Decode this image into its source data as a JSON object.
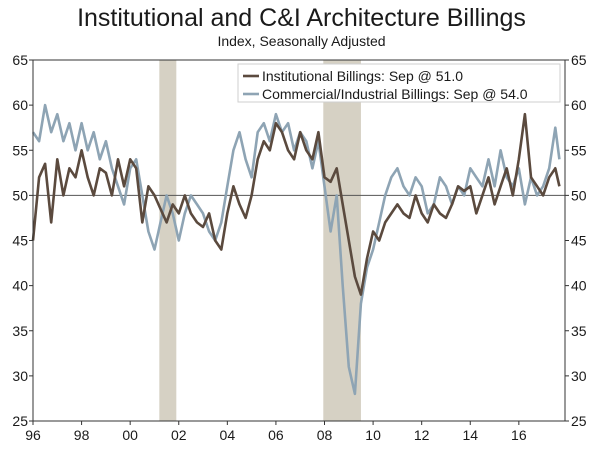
{
  "chart_data": {
    "type": "line",
    "title": "Institutional and C&I Architecture Billings",
    "subtitle": "Index, Seasonally Adjusted",
    "ylim": [
      25,
      65
    ],
    "y_ticks": [
      25,
      30,
      35,
      40,
      45,
      50,
      55,
      60,
      65
    ],
    "x_range": [
      1996.0,
      2017.9
    ],
    "x_tick_positions": [
      1996,
      1998,
      2000,
      2002,
      2004,
      2006,
      2008,
      2010,
      2012,
      2014,
      2016
    ],
    "x_tick_labels": [
      "96",
      "98",
      "00",
      "02",
      "04",
      "06",
      "08",
      "10",
      "12",
      "14",
      "16"
    ],
    "reference_line": 50,
    "recessions": [
      [
        2001.2,
        2001.9
      ],
      [
        2007.95,
        2009.5
      ]
    ],
    "legend_position": "top-right",
    "grid": false,
    "series": [
      {
        "name": "Institutional Billings: Sep @ 51.0",
        "color": "#5b4a3e",
        "x": [
          1996.0,
          1996.25,
          1996.5,
          1996.75,
          1997.0,
          1997.25,
          1997.5,
          1997.75,
          1998.0,
          1998.25,
          1998.5,
          1998.75,
          1999.0,
          1999.25,
          1999.5,
          1999.75,
          2000.0,
          2000.25,
          2000.5,
          2000.75,
          2001.0,
          2001.25,
          2001.5,
          2001.75,
          2002.0,
          2002.25,
          2002.5,
          2002.75,
          2003.0,
          2003.25,
          2003.5,
          2003.75,
          2004.0,
          2004.25,
          2004.5,
          2004.75,
          2005.0,
          2005.25,
          2005.5,
          2005.75,
          2006.0,
          2006.25,
          2006.5,
          2006.75,
          2007.0,
          2007.25,
          2007.5,
          2007.75,
          2008.0,
          2008.25,
          2008.5,
          2008.75,
          2009.0,
          2009.25,
          2009.5,
          2009.75,
          2010.0,
          2010.25,
          2010.5,
          2010.75,
          2011.0,
          2011.25,
          2011.5,
          2011.75,
          2012.0,
          2012.25,
          2012.5,
          2012.75,
          2013.0,
          2013.25,
          2013.5,
          2013.75,
          2014.0,
          2014.25,
          2014.5,
          2014.75,
          2015.0,
          2015.25,
          2015.5,
          2015.75,
          2016.0,
          2016.25,
          2016.5,
          2016.75,
          2017.0,
          2017.25,
          2017.5,
          2017.67
        ],
        "values": [
          45.0,
          52.0,
          53.5,
          47.0,
          54.0,
          50.0,
          53.0,
          52.0,
          55.0,
          52.0,
          50.0,
          53.0,
          52.5,
          50.0,
          54.0,
          51.0,
          54.0,
          53.0,
          47.0,
          51.0,
          50.0,
          48.5,
          47.0,
          49.0,
          48.0,
          50.0,
          48.0,
          47.0,
          46.5,
          48.0,
          45.0,
          44.0,
          48.0,
          51.0,
          49.0,
          47.5,
          50.0,
          54.0,
          56.0,
          55.0,
          58.0,
          57.0,
          55.0,
          54.0,
          57.0,
          55.0,
          54.0,
          57.0,
          52.0,
          51.5,
          53.0,
          49.0,
          45.0,
          41.0,
          39.0,
          43.0,
          46.0,
          45.0,
          47.0,
          48.0,
          49.0,
          48.0,
          47.5,
          50.0,
          48.0,
          47.0,
          49.0,
          48.0,
          47.5,
          49.0,
          51.0,
          50.5,
          51.0,
          48.0,
          50.0,
          52.0,
          49.0,
          51.0,
          53.0,
          50.0,
          54.0,
          59.0,
          52.0,
          51.0,
          50.0,
          52.0,
          53.0,
          51.0
        ]
      },
      {
        "name": "Commercial/Industrial Billings: Sep @ 54.0",
        "color": "#8ea4b4",
        "x": [
          1996.0,
          1996.25,
          1996.5,
          1996.75,
          1997.0,
          1997.25,
          1997.5,
          1997.75,
          1998.0,
          1998.25,
          1998.5,
          1998.75,
          1999.0,
          1999.25,
          1999.5,
          1999.75,
          2000.0,
          2000.25,
          2000.5,
          2000.75,
          2001.0,
          2001.25,
          2001.5,
          2001.75,
          2002.0,
          2002.25,
          2002.5,
          2002.75,
          2003.0,
          2003.25,
          2003.5,
          2003.75,
          2004.0,
          2004.25,
          2004.5,
          2004.75,
          2005.0,
          2005.25,
          2005.5,
          2005.75,
          2006.0,
          2006.25,
          2006.5,
          2006.75,
          2007.0,
          2007.25,
          2007.5,
          2007.75,
          2008.0,
          2008.25,
          2008.5,
          2008.75,
          2009.0,
          2009.25,
          2009.5,
          2009.75,
          2010.0,
          2010.25,
          2010.5,
          2010.75,
          2011.0,
          2011.25,
          2011.5,
          2011.75,
          2012.0,
          2012.25,
          2012.5,
          2012.75,
          2013.0,
          2013.25,
          2013.5,
          2013.75,
          2014.0,
          2014.25,
          2014.5,
          2014.75,
          2015.0,
          2015.25,
          2015.5,
          2015.75,
          2016.0,
          2016.25,
          2016.5,
          2016.75,
          2017.0,
          2017.25,
          2017.5,
          2017.67
        ],
        "values": [
          57.0,
          56.0,
          60.0,
          57.0,
          59.0,
          56.0,
          58.0,
          55.0,
          58.0,
          55.0,
          57.0,
          54.0,
          56.0,
          53.0,
          51.0,
          49.0,
          53.0,
          54.0,
          50.0,
          46.0,
          44.0,
          47.0,
          50.0,
          48.0,
          45.0,
          48.0,
          50.0,
          49.0,
          48.0,
          46.0,
          45.0,
          47.0,
          51.0,
          55.0,
          57.0,
          54.0,
          52.0,
          57.0,
          58.0,
          56.0,
          59.0,
          57.0,
          58.0,
          55.0,
          57.0,
          56.0,
          53.0,
          56.0,
          51.0,
          46.0,
          50.0,
          40.0,
          31.0,
          28.0,
          38.0,
          42.0,
          44.0,
          47.0,
          50.0,
          52.0,
          53.0,
          51.0,
          50.0,
          52.0,
          51.0,
          48.0,
          49.0,
          52.0,
          51.0,
          49.0,
          51.0,
          50.0,
          53.0,
          52.0,
          51.0,
          54.0,
          51.0,
          55.0,
          52.0,
          51.0,
          53.0,
          49.0,
          52.0,
          50.0,
          51.0,
          53.0,
          57.5,
          54.0
        ]
      }
    ]
  }
}
